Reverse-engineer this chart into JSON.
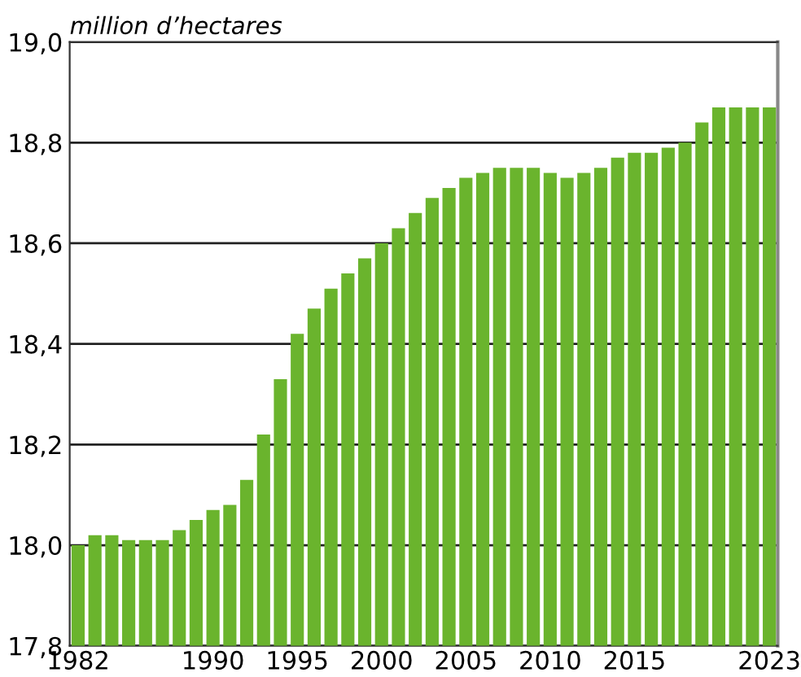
{
  "chart_data": {
    "type": "bar",
    "ylabel": "million d’hectares",
    "x": [
      1982,
      1983,
      1984,
      1985,
      1986,
      1987,
      1988,
      1989,
      1990,
      1991,
      1992,
      1993,
      1994,
      1995,
      1996,
      1997,
      1998,
      1999,
      2000,
      2001,
      2002,
      2003,
      2004,
      2005,
      2006,
      2007,
      2008,
      2009,
      2010,
      2011,
      2012,
      2013,
      2014,
      2015,
      2016,
      2017,
      2018,
      2019,
      2020,
      2021,
      2022,
      2023
    ],
    "values": [
      18.0,
      18.02,
      18.02,
      18.01,
      18.01,
      18.01,
      18.03,
      18.05,
      18.07,
      18.08,
      18.13,
      18.22,
      18.33,
      18.42,
      18.47,
      18.51,
      18.54,
      18.57,
      18.6,
      18.63,
      18.66,
      18.69,
      18.71,
      18.73,
      18.74,
      18.75,
      18.75,
      18.75,
      18.74,
      18.73,
      18.74,
      18.75,
      18.77,
      18.78,
      18.78,
      18.79,
      18.8,
      18.84,
      18.87,
      18.87,
      18.87,
      18.87
    ],
    "color": "#6ab42d",
    "xlim": [
      1981.5,
      2023.5
    ],
    "xticks": [
      1982,
      1990,
      1995,
      2000,
      2005,
      2010,
      2015,
      2023
    ],
    "ylim": [
      17.8,
      19.0
    ],
    "yticks": [
      {
        "value": 17.8,
        "label": "17,8"
      },
      {
        "value": 18.0,
        "label": "18,0"
      },
      {
        "value": 18.2,
        "label": "18,2"
      },
      {
        "value": 18.4,
        "label": "18,4"
      },
      {
        "value": 18.6,
        "label": "18,6"
      },
      {
        "value": 18.8,
        "label": "18,8"
      },
      {
        "value": 19.0,
        "label": "19,0"
      }
    ],
    "grid": "y",
    "legend": false
  }
}
